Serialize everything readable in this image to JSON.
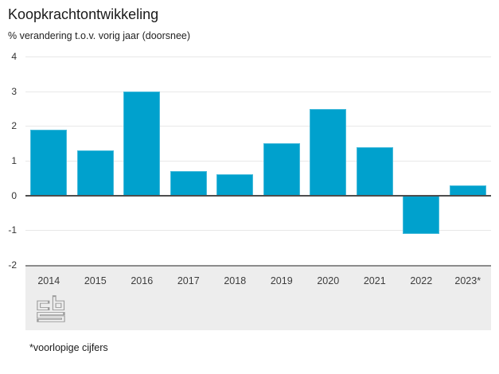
{
  "title": "Koopkrachtontwikkeling",
  "subtitle": "% verandering t.o.v. vorig jaar (doorsnee)",
  "footnote": "*voorlopige cijfers",
  "logo": {
    "name": "cbs-logo",
    "letters": "cbs"
  },
  "colors": {
    "bar": "#00a1cd",
    "grid": "#e8e8e8",
    "zero_line": "#4d4d4d",
    "axis_band": "#ededed",
    "band_border": "#8c8c8c",
    "title_text": "#1a1a1a",
    "axis_text": "#3d3d3d",
    "logo": "#9c9c9c"
  },
  "chart_data": {
    "type": "bar",
    "categories": [
      "2014",
      "2015",
      "2016",
      "2017",
      "2018",
      "2019",
      "2020",
      "2021",
      "2022",
      "2023*"
    ],
    "values": [
      1.9,
      1.3,
      3.0,
      0.7,
      0.6,
      1.5,
      2.5,
      1.4,
      -1.1,
      0.3
    ],
    "title": "Koopkrachtontwikkeling",
    "xlabel": "",
    "ylabel": "% verandering t.o.v. vorig jaar (doorsnee)",
    "ylim": [
      -2,
      4
    ],
    "yticks": [
      4,
      3,
      2,
      1,
      0,
      -1,
      -2
    ],
    "grid": true,
    "legend": false,
    "bar_color": "#00a1cd"
  }
}
